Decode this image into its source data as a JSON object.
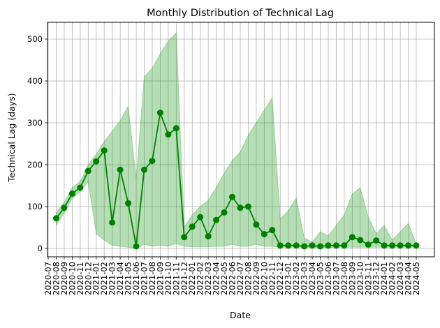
{
  "chart_data": {
    "type": "line",
    "title": "Monthly Distribution of Technical Lag",
    "xlabel": "Date",
    "ylabel": "Technical Lag (days)",
    "x_ticks": [
      "2020-07",
      "2020-08",
      "2020-09",
      "2020-10",
      "2020-11",
      "2020-12",
      "2021-01",
      "2021-02",
      "2021-03",
      "2021-04",
      "2021-05",
      "2021-06",
      "2021-07",
      "2021-08",
      "2021-09",
      "2021-10",
      "2021-11",
      "2021-12",
      "2022-01",
      "2022-02",
      "2022-03",
      "2022-04",
      "2022-05",
      "2022-06",
      "2022-07",
      "2022-08",
      "2022-09",
      "2022-10",
      "2022-11",
      "2022-12",
      "2023-01",
      "2023-02",
      "2023-03",
      "2023-04",
      "2023-05",
      "2023-06",
      "2023-07",
      "2023-08",
      "2023-09",
      "2023-10",
      "2023-11",
      "2023-12",
      "2024-01",
      "2024-02",
      "2024-03",
      "2024-04",
      "2024-05"
    ],
    "y_ticks": [
      0,
      100,
      200,
      300,
      400,
      500
    ],
    "ylim": [
      -20,
      540
    ],
    "grid": true,
    "series": [
      {
        "color": "#008000",
        "marker": "circle",
        "x": [
          "2020-08",
          "2020-09",
          "2020-10",
          "2020-11",
          "2020-12",
          "2021-01",
          "2021-02",
          "2021-03",
          "2021-04",
          "2021-05",
          "2021-06",
          "2021-07",
          "2021-08",
          "2021-09",
          "2021-10",
          "2021-11",
          "2021-12",
          "2022-01",
          "2022-02",
          "2022-03",
          "2022-04",
          "2022-05",
          "2022-06",
          "2022-07",
          "2022-08",
          "2022-09",
          "2022-10",
          "2022-11",
          "2022-12",
          "2023-01",
          "2023-02",
          "2023-03",
          "2023-04",
          "2023-05",
          "2023-06",
          "2023-07",
          "2023-08",
          "2023-09",
          "2023-10",
          "2023-11",
          "2023-12",
          "2024-01",
          "2024-02",
          "2024-03",
          "2024-04",
          "2024-05"
        ],
        "values": [
          72,
          97,
          131,
          145,
          185,
          208,
          234,
          62,
          188,
          108,
          5,
          188,
          209,
          324,
          272,
          287,
          27,
          52,
          75,
          29,
          68,
          86,
          123,
          97,
          100,
          57,
          34,
          44,
          7,
          7,
          7,
          5,
          7,
          5,
          7,
          7,
          7,
          27,
          20,
          9,
          19,
          7,
          7,
          7,
          7,
          7
        ],
        "band": {
          "color": "#2ca02c",
          "lower": [
            55,
            85,
            120,
            135,
            160,
            35,
            20,
            7,
            5,
            3,
            0,
            10,
            5,
            8,
            5,
            12,
            5,
            4,
            4,
            4,
            5,
            5,
            10,
            5,
            5,
            10,
            5,
            5,
            3,
            3,
            3,
            2,
            2,
            2,
            2,
            3,
            3,
            3,
            3,
            3,
            3,
            3,
            3,
            3,
            3,
            3
          ],
          "upper": [
            85,
            110,
            145,
            160,
            200,
            225,
            255,
            280,
            305,
            340,
            165,
            410,
            430,
            465,
            495,
            515,
            50,
            80,
            100,
            115,
            145,
            180,
            210,
            230,
            270,
            300,
            330,
            360,
            70,
            90,
            120,
            25,
            15,
            40,
            30,
            55,
            80,
            130,
            145,
            75,
            35,
            55,
            20,
            40,
            60,
            10
          ]
        }
      }
    ]
  }
}
